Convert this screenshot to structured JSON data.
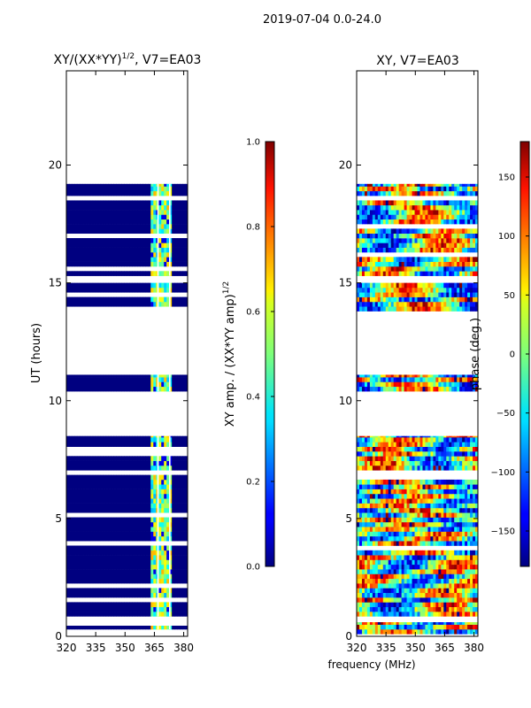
{
  "figure": {
    "suptitle": "2019-07-04 0.0-24.0",
    "shared_xlabel": "frequency (MHz)"
  },
  "chart_data": [
    {
      "type": "heatmap",
      "title": "XY/(XX*YY)",
      "title_exponent": "1/2",
      "title_suffix": ", V7=EA03",
      "ylabel": "UT (hours)",
      "xlabel": "frequency (MHz)",
      "xlim": [
        320,
        382
      ],
      "ylim": [
        0,
        24
      ],
      "xticks": [
        320,
        335,
        350,
        365,
        380
      ],
      "yticks": [
        0,
        5,
        10,
        15,
        20
      ],
      "data_rows_hours": [
        [
          0.3,
          0.45
        ],
        [
          0.85,
          8.5
        ],
        [
          10.4,
          11.1
        ],
        [
          13.8,
          15.0
        ],
        [
          15.3,
          19.2
        ]
      ],
      "band_mhz": [
        363,
        375
      ],
      "background_value": 0.0,
      "band_values_range": [
        0.3,
        0.7
      ],
      "colorbar": {
        "label": "XY amp. / (XX*YY amp)",
        "label_exponent": "1/2",
        "range": [
          0.0,
          1.0
        ],
        "ticks": [
          "0.0",
          "0.2",
          "0.4",
          "0.6",
          "0.8",
          "1.0"
        ]
      }
    },
    {
      "type": "heatmap",
      "title": "XY, V7=EA03",
      "ylabel": "",
      "xlabel": "frequency (MHz)",
      "xlim": [
        320,
        382
      ],
      "ylim": [
        0,
        24
      ],
      "xticks": [
        320,
        335,
        350,
        365,
        380
      ],
      "yticks": [
        0,
        5,
        10,
        15,
        20
      ],
      "data_rows_hours": [
        [
          0.1,
          0.6
        ],
        [
          0.85,
          8.5
        ],
        [
          10.4,
          11.1
        ],
        [
          13.8,
          15.0
        ],
        [
          15.3,
          19.2
        ]
      ],
      "value_range_deg": [
        -180,
        180
      ],
      "colorbar": {
        "label": "phase (deg.)",
        "range": [
          -180,
          180
        ],
        "ticks": [
          "150",
          "100",
          "50",
          "0",
          "−50",
          "−100",
          "−150"
        ],
        "tick_values": [
          150,
          100,
          50,
          0,
          -50,
          -100,
          -150
        ]
      }
    }
  ]
}
